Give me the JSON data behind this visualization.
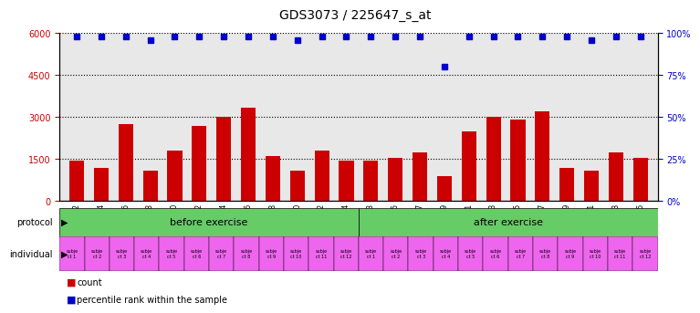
{
  "title": "GDS3073 / 225647_s_at",
  "samples": [
    "GSM214982",
    "GSM214984",
    "GSM214986",
    "GSM214988",
    "GSM214990",
    "GSM214992",
    "GSM214994",
    "GSM214996",
    "GSM214998",
    "GSM215000",
    "GSM215002",
    "GSM215004",
    "GSM214983",
    "GSM214985",
    "GSM214987",
    "GSM214989",
    "GSM214991",
    "GSM214993",
    "GSM214995",
    "GSM214997",
    "GSM214999",
    "GSM215001",
    "GSM215003",
    "GSM215005"
  ],
  "counts": [
    1450,
    1200,
    2750,
    1100,
    1800,
    2700,
    3000,
    3350,
    1600,
    1100,
    1800,
    1450,
    1450,
    1550,
    1750,
    900,
    2500,
    3000,
    2900,
    3200,
    1200,
    1100,
    1750,
    1550
  ],
  "percentile_ranks": [
    98,
    98,
    98,
    96,
    98,
    98,
    98,
    98,
    98,
    96,
    98,
    98,
    98,
    98,
    98,
    80,
    98,
    98,
    98,
    98,
    98,
    96,
    98,
    98
  ],
  "bar_color": "#cc0000",
  "dot_color": "#0000cc",
  "ylim_left": [
    0,
    6000
  ],
  "ylim_right": [
    0,
    100
  ],
  "yticks_left": [
    0,
    1500,
    3000,
    4500,
    6000
  ],
  "yticks_right": [
    0,
    25,
    50,
    75,
    100
  ],
  "protocol_before": "before exercise",
  "protocol_after": "after exercise",
  "before_count": 12,
  "after_count": 12,
  "individuals_before": [
    "subje\nct 1",
    "subje\nct 2",
    "subje\nct 3",
    "subje\nct 4",
    "subje\nct 5",
    "subje\nct 6",
    "subje\nct 7",
    "subje\nct 8",
    "subje\nct 9",
    "subje\nct 10",
    "subje\nct 11",
    "subje\nct 12"
  ],
  "individuals_after": [
    "subje\nct 1",
    "subje\nct 2",
    "subje\nct 3",
    "subje\nct 4",
    "subje\nct 5",
    "subje\nct 6",
    "subje\nct 7",
    "subje\nct 8",
    "subje\nct 9",
    "subje\nct 10",
    "subje\nct 11",
    "subje\nct 12"
  ],
  "bg_color": "#ffffff",
  "plot_bg_color": "#e8e8e8",
  "protocol_green": "#66cc66",
  "individual_pink": "#ee66ee",
  "grid_color": "#000000",
  "right_axis_color": "#0000cc",
  "left_axis_color": "#cc0000"
}
